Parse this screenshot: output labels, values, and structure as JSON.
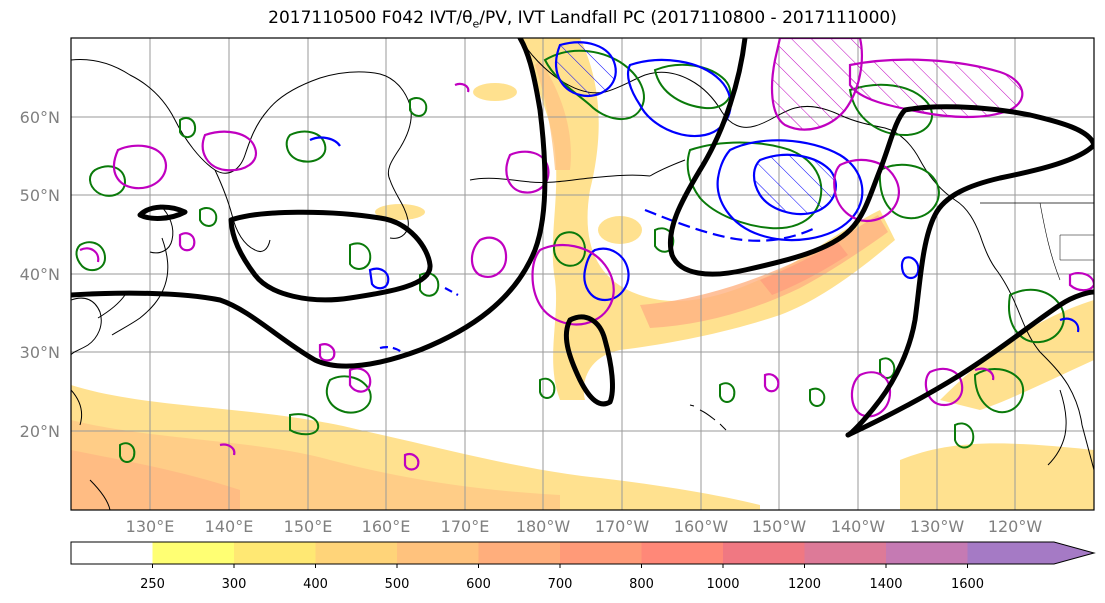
{
  "title": {
    "prefix": "2017110500 F042 IVT/θ",
    "sub": "e",
    "suffix": "/PV, IVT Landfall PC (2017110800 - 2017111000)"
  },
  "axes": {
    "lat_labels": [
      "60°N",
      "50°N",
      "40°N",
      "30°N",
      "20°N"
    ],
    "lat_values": [
      60,
      50,
      40,
      30,
      20
    ],
    "lon_labels": [
      "130°E",
      "140°E",
      "150°E",
      "160°E",
      "170°E",
      "180°W",
      "170°W",
      "160°W",
      "150°W",
      "140°W",
      "130°W",
      "120°W"
    ],
    "lon_values": [
      130,
      140,
      150,
      160,
      170,
      180,
      190,
      200,
      210,
      220,
      230,
      240
    ],
    "lon_range": [
      120,
      250
    ],
    "lat_range": [
      10,
      70
    ],
    "grid": true
  },
  "colorbar": {
    "tick_labels": [
      "250",
      "300",
      "400",
      "500",
      "600",
      "700",
      "800",
      "1000",
      "1200",
      "1400",
      "1600"
    ],
    "colors": [
      "#ffff73",
      "#ffe873",
      "#ffd479",
      "#ffc27d",
      "#ffae7c",
      "#ff9a78",
      "#ff8878",
      "#f07882",
      "#dd7a98",
      "#c57ab3",
      "#a57ac5"
    ],
    "extend": "max"
  },
  "layer_colors": {
    "ivt_fill": "#ffcc66",
    "pc_contour": "#000000",
    "theta_e": "#0a7a0a",
    "pv_blue": "#0000ff",
    "pv_magenta": "#c000c0",
    "coastline": "#000000"
  }
}
